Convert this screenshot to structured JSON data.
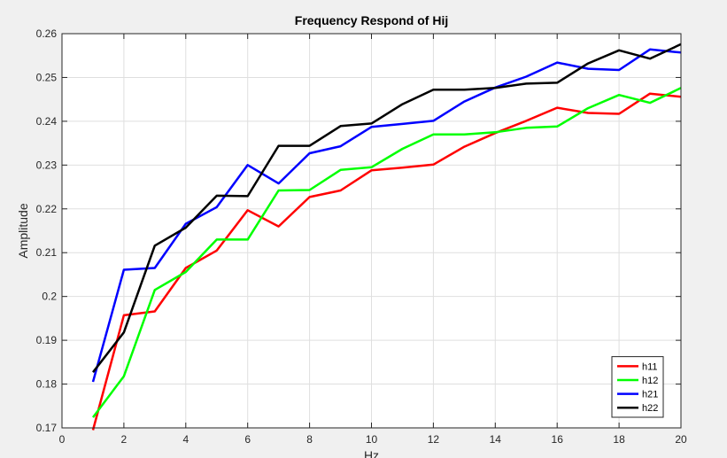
{
  "chart_data": {
    "type": "line",
    "title": "Frequency Respond of Hij",
    "xlabel": "Hz",
    "ylabel": "Amplitude",
    "xlim": [
      0,
      20
    ],
    "ylim": [
      0.17,
      0.26
    ],
    "xticks": [
      0,
      2,
      4,
      6,
      8,
      10,
      12,
      14,
      16,
      18,
      20
    ],
    "yticks": [
      0.17,
      0.18,
      0.19,
      0.2,
      0.21,
      0.22,
      0.23,
      0.24,
      0.25,
      0.26
    ],
    "ytick_labels": [
      "0.17",
      "0.18",
      "0.19",
      "0.2",
      "0.21",
      "0.22",
      "0.23",
      "0.24",
      "0.25",
      "0.26"
    ],
    "grid": true,
    "legend_position": "bottom-right",
    "x": [
      1,
      2,
      3,
      4,
      5,
      6,
      7,
      8,
      9,
      10,
      11,
      12,
      13,
      14,
      15,
      16,
      17,
      18,
      19,
      20
    ],
    "series": [
      {
        "name": "h11",
        "color": "#ff0000",
        "values": [
          0.1695,
          0.1957,
          0.1966,
          0.2065,
          0.2105,
          0.2197,
          0.216,
          0.2227,
          0.2242,
          0.2288,
          0.2294,
          0.2301,
          0.2342,
          0.2373,
          0.2401,
          0.2431,
          0.2419,
          0.2417,
          0.2463,
          0.2456
        ]
      },
      {
        "name": "h12",
        "color": "#00ff00",
        "values": [
          0.1724,
          0.1818,
          0.2015,
          0.2056,
          0.213,
          0.213,
          0.2242,
          0.2243,
          0.2289,
          0.2295,
          0.2337,
          0.237,
          0.237,
          0.2375,
          0.2385,
          0.2388,
          0.243,
          0.246,
          0.2442,
          0.2476
        ]
      },
      {
        "name": "h21",
        "color": "#0000ff",
        "values": [
          0.1805,
          0.2061,
          0.2065,
          0.2166,
          0.2204,
          0.23,
          0.2258,
          0.2327,
          0.2343,
          0.2387,
          0.2394,
          0.2401,
          0.2445,
          0.2477,
          0.2502,
          0.2534,
          0.252,
          0.2517,
          0.2564,
          0.2557
        ]
      },
      {
        "name": "h22",
        "color": "#000000",
        "values": [
          0.1827,
          0.1918,
          0.2116,
          0.2157,
          0.223,
          0.2229,
          0.2344,
          0.2344,
          0.2389,
          0.2395,
          0.2439,
          0.2472,
          0.2472,
          0.2476,
          0.2486,
          0.2488,
          0.2532,
          0.2562,
          0.2543,
          0.2576
        ]
      }
    ]
  }
}
